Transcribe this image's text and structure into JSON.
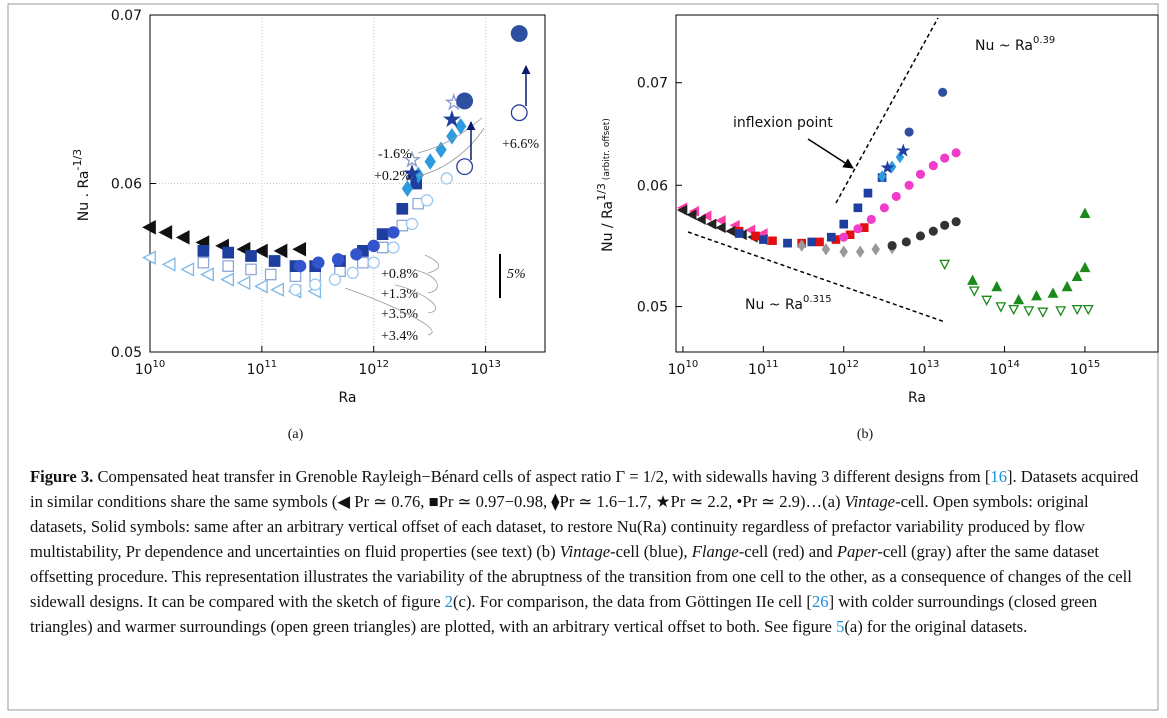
{
  "chart_data": [
    {
      "type": "scatter",
      "log_x": true,
      "log_y": false,
      "grid": true,
      "x_label": "Ra",
      "y_label": "Nu . Ra",
      "y_label_sup": "-1/3",
      "panel_label": "(a)",
      "xlim": [
        10000000000.0,
        34000000000000.0
      ],
      "ylim": [
        0.05,
        0.07
      ],
      "xticks": [
        {
          "value": 10000000000.0,
          "label": "10",
          "exponent": "10"
        },
        {
          "value": 100000000000.0,
          "label": "10",
          "exponent": "11"
        },
        {
          "value": 1000000000000.0,
          "label": "10",
          "exponent": "12"
        },
        {
          "value": 10000000000000.0,
          "label": "10",
          "exponent": "13"
        }
      ],
      "yticks": [
        0.05,
        0.06,
        0.07
      ],
      "annotations": [
        "-1.6%",
        "+0.2%",
        "+6.6%",
        "+0.8%",
        "+1.3%",
        "+3.5%",
        "+3.4%",
        "5%"
      ],
      "series": [
        {
          "marker": "triangle-left",
          "filled": false,
          "color": "#7ab8e8",
          "x": [
            10000000000.0,
            15000000000.0,
            22000000000.0,
            33000000000.0,
            50000000000.0,
            70000000000.0,
            100000000000.0,
            140000000000.0,
            200000000000.0,
            300000000000.0
          ],
          "values": [
            0.0556,
            0.0552,
            0.0549,
            0.0546,
            0.0543,
            0.0541,
            0.0539,
            0.0537,
            0.0536,
            0.0536
          ]
        },
        {
          "marker": "triangle-left",
          "filled": true,
          "color": "#111111",
          "x": [
            10000000000.0,
            14000000000.0,
            20000000000.0,
            30000000000.0,
            45000000000.0,
            70000000000.0,
            100000000000.0,
            150000000000.0,
            220000000000.0
          ],
          "values": [
            0.0574,
            0.0571,
            0.0568,
            0.0565,
            0.0563,
            0.0561,
            0.056,
            0.056,
            0.0561
          ]
        },
        {
          "marker": "square",
          "filled": false,
          "color": "#8fa8d8",
          "x": [
            30000000000.0,
            50000000000.0,
            80000000000.0,
            120000000000.0,
            200000000000.0,
            300000000000.0,
            500000000000.0,
            800000000000.0,
            1200000000000.0,
            1800000000000.0,
            2500000000000.0
          ],
          "values": [
            0.0553,
            0.0551,
            0.0549,
            0.0546,
            0.0545,
            0.0545,
            0.0548,
            0.0553,
            0.0562,
            0.0575,
            0.0588
          ]
        },
        {
          "marker": "square",
          "filled": true,
          "color": "#1f3f9f",
          "x": [
            30000000000.0,
            50000000000.0,
            80000000000.0,
            130000000000.0,
            200000000000.0,
            300000000000.0,
            500000000000.0,
            800000000000.0,
            1200000000000.0,
            1800000000000.0,
            2400000000000.0
          ],
          "values": [
            0.056,
            0.0559,
            0.0557,
            0.0554,
            0.0551,
            0.0551,
            0.0554,
            0.056,
            0.057,
            0.0585,
            0.06
          ]
        },
        {
          "marker": "circle",
          "filled": false,
          "color": "#9cc9ef",
          "x": [
            200000000000.0,
            300000000000.0,
            450000000000.0,
            650000000000.0,
            1000000000000.0,
            1500000000000.0,
            2200000000000.0,
            3000000000000.0,
            4500000000000.0
          ],
          "values": [
            0.0537,
            0.054,
            0.0543,
            0.0547,
            0.0553,
            0.0562,
            0.0576,
            0.059,
            0.0603
          ]
        },
        {
          "marker": "circle",
          "filled": true,
          "color": "#3355cc",
          "x": [
            220000000000.0,
            320000000000.0,
            480000000000.0,
            700000000000.0,
            1000000000000.0,
            1500000000000.0
          ],
          "values": [
            0.0551,
            0.0553,
            0.0555,
            0.0558,
            0.0563,
            0.0571
          ]
        },
        {
          "marker": "diamond",
          "filled": true,
          "color": "#2e9be0",
          "x": [
            2000000000000.0,
            2500000000000.0,
            3200000000000.0,
            4000000000000.0,
            5000000000000.0,
            6000000000000.0
          ],
          "values": [
            0.0597,
            0.0605,
            0.0613,
            0.062,
            0.0628,
            0.0634
          ]
        },
        {
          "marker": "star",
          "filled": false,
          "color": "#8899cc",
          "x": [
            2200000000000.0,
            5200000000000.0
          ],
          "values": [
            0.0614,
            0.0648
          ]
        },
        {
          "marker": "star",
          "filled": true,
          "color": "#1f3f9f",
          "x": [
            2200000000000.0,
            5000000000000.0
          ],
          "values": [
            0.0606,
            0.0638
          ]
        },
        {
          "marker": "big-circle",
          "filled": false,
          "color": "#2a3f99",
          "x": [
            6500000000000.0,
            20000000000000.0
          ],
          "values": [
            0.061,
            0.0642
          ]
        },
        {
          "marker": "big-circle",
          "filled": true,
          "color": "#2f4fa0",
          "x": [
            6500000000000.0,
            20000000000000.0
          ],
          "values": [
            0.0649,
            0.0689
          ]
        }
      ]
    },
    {
      "type": "scatter",
      "log_x": true,
      "log_y": true,
      "grid": false,
      "x_label": "Ra",
      "y_label": "Nu / Ra",
      "y_label_sup": "1/3",
      "y_label_note": "(arbitr. offset)",
      "panel_label": "(b)",
      "xlim": [
        8200000000.0,
        8100000000000000.0
      ],
      "ylim": [
        0.0467,
        0.0775
      ],
      "xticks": [
        {
          "value": 10000000000.0,
          "label": "10",
          "exponent": "10"
        },
        {
          "value": 100000000000.0,
          "label": "10",
          "exponent": "11"
        },
        {
          "value": 1000000000000.0,
          "label": "10",
          "exponent": "12"
        },
        {
          "value": 10000000000000.0,
          "label": "10",
          "exponent": "13"
        },
        {
          "value": 100000000000000.0,
          "label": "10",
          "exponent": "14"
        },
        {
          "value": 1000000000000000.0,
          "label": "10",
          "exponent": "15"
        }
      ],
      "yticks": [
        0.05,
        0.06,
        0.07
      ],
      "law_high": {
        "text": "Nu ~ Ra",
        "exponent": "0.39"
      },
      "law_low": {
        "text": "Nu ~ Ra",
        "exponent": "0.315"
      },
      "inflexion_label": "inflexion point",
      "series": [
        {
          "marker": "triangle-left",
          "filled": true,
          "color": "#ff3fa8",
          "x": [
            10000000000.0,
            14000000000.0,
            20000000000.0,
            30000000000.0,
            45000000000.0,
            70000000000.0,
            100000000000.0
          ],
          "values": [
            0.058,
            0.0577,
            0.0573,
            0.0569,
            0.0565,
            0.0561,
            0.0558
          ]
        },
        {
          "marker": "triangle-left",
          "filled": true,
          "color": "#222222",
          "x": [
            10000000000.0,
            13000000000.0,
            17000000000.0,
            23000000000.0,
            30000000000.0,
            40000000000.0,
            55000000000.0,
            75000000000.0,
            100000000000.0
          ],
          "values": [
            0.0578,
            0.0574,
            0.057,
            0.0566,
            0.0563,
            0.056,
            0.0557,
            0.0555,
            0.0553
          ]
        },
        {
          "marker": "square",
          "filled": true,
          "color": "#e01010",
          "x": [
            50000000000.0,
            80000000000.0,
            130000000000.0,
            200000000000.0,
            300000000000.0,
            500000000000.0,
            800000000000.0,
            1200000000000.0,
            1800000000000.0
          ],
          "values": [
            0.056,
            0.0556,
            0.0552,
            0.055,
            0.055,
            0.0551,
            0.0553,
            0.0557,
            0.0563
          ]
        },
        {
          "marker": "square",
          "filled": true,
          "color": "#1f3f9f",
          "x": [
            50000000000.0,
            100000000000.0,
            200000000000.0,
            400000000000.0,
            700000000000.0,
            1000000000000.0,
            1500000000000.0,
            2000000000000.0,
            3000000000000.0
          ],
          "values": [
            0.0558,
            0.0553,
            0.055,
            0.0551,
            0.0555,
            0.0566,
            0.058,
            0.0593,
            0.0607
          ]
        },
        {
          "marker": "diamond",
          "filled": true,
          "color": "#999999",
          "x": [
            300000000000.0,
            600000000000.0,
            1000000000000.0,
            1600000000000.0,
            2500000000000.0,
            4000000000000.0
          ],
          "values": [
            0.0548,
            0.0545,
            0.0543,
            0.0543,
            0.0545,
            0.0546
          ]
        },
        {
          "marker": "circle",
          "filled": true,
          "color": "#f03cc8",
          "x": [
            1000000000000.0,
            1500000000000.0,
            2200000000000.0,
            3200000000000.0,
            4500000000000.0,
            6500000000000.0,
            9000000000000.0,
            13000000000000.0,
            18000000000000.0,
            25000000000000.0
          ],
          "values": [
            0.0555,
            0.0562,
            0.057,
            0.058,
            0.059,
            0.06,
            0.061,
            0.0618,
            0.0625,
            0.063
          ]
        },
        {
          "marker": "circle",
          "filled": true,
          "color": "#333333",
          "x": [
            4000000000000.0,
            6000000000000.0,
            9000000000000.0,
            13000000000000.0,
            18000000000000.0,
            25000000000000.0
          ],
          "values": [
            0.0548,
            0.0551,
            0.0556,
            0.056,
            0.0565,
            0.0568
          ]
        },
        {
          "marker": "diamond",
          "filled": true,
          "color": "#2e9be0",
          "x": [
            3000000000000.0,
            4000000000000.0,
            5000000000000.0
          ],
          "values": [
            0.0608,
            0.0617,
            0.0626
          ]
        },
        {
          "marker": "star",
          "filled": true,
          "color": "#1f3f9f",
          "x": [
            3500000000000.0,
            5500000000000.0
          ],
          "values": [
            0.0616,
            0.0632
          ]
        },
        {
          "marker": "circle",
          "filled": true,
          "color": "#2f4fa0",
          "x": [
            6500000000000.0,
            17000000000000.0
          ],
          "values": [
            0.065,
            0.069
          ]
        },
        {
          "marker": "triangle-up",
          "filled": true,
          "color": "#1a8a1a",
          "x": [
            40000000000000.0,
            80000000000000.0,
            150000000000000.0,
            250000000000000.0,
            400000000000000.0,
            600000000000000.0,
            800000000000000.0,
            1000000000000000.0,
            1000000000000000.0
          ],
          "values": [
            0.052,
            0.0515,
            0.0505,
            0.0508,
            0.051,
            0.0515,
            0.0523,
            0.053,
            0.0575
          ]
        },
        {
          "marker": "triangle-down",
          "filled": false,
          "color": "#1a8a1a",
          "x": [
            18000000000000.0,
            42000000000000.0,
            60000000000000.0,
            90000000000000.0,
            130000000000000.0,
            200000000000000.0,
            300000000000000.0,
            500000000000000.0,
            800000000000000.0,
            1100000000000000.0
          ],
          "values": [
            0.0533,
            0.0512,
            0.0505,
            0.05,
            0.0498,
            0.0497,
            0.0496,
            0.0497,
            0.0498,
            0.0498
          ]
        }
      ]
    }
  ],
  "caption": {
    "segments": [
      {
        "text": "Figure 3.",
        "style": "bold"
      },
      {
        "text": " Compensated heat transfer in Grenoble Rayleigh−Bénard cells of aspect ratio Γ = 1/2, with sidewalls having 3 different designs from ["
      },
      {
        "text": "16",
        "style": "link"
      },
      {
        "text": "]. Datasets acquired in similar conditions share the same symbols (◀ Pr ≃ 0.76, ■Pr ≃ 0.97−0.98, ⧫Pr ≃ 1.6−1.7, ★Pr ≃ 2.2, •Pr ≃ 2.9)…(a) "
      },
      {
        "text": "Vintage",
        "style": "italic"
      },
      {
        "text": "-cell. Open symbols: original datasets, Solid symbols: same after an arbitrary vertical offset of each dataset, to restore Nu(Ra) continuity regardless of prefactor variability produced by flow multistability, Pr dependence and uncertainties on fluid properties (see text) (b) "
      },
      {
        "text": "Vintage",
        "style": "italic"
      },
      {
        "text": "-cell (blue), "
      },
      {
        "text": "Flange",
        "style": "italic"
      },
      {
        "text": "-cell (red) and "
      },
      {
        "text": "Paper",
        "style": "italic"
      },
      {
        "text": "-cell (gray) after the same dataset offsetting procedure. This representation illustrates the variability of the abruptness of the transition from one cell to the other, as a consequence of changes of the cell sidewall designs. It can be compared with the sketch of figure "
      },
      {
        "text": "2",
        "style": "link"
      },
      {
        "text": "(c). For comparison, the data from Göttingen IIe cell ["
      },
      {
        "text": "26",
        "style": "link"
      },
      {
        "text": "] with colder surroundings (closed green triangles) and warmer surroundings (open green triangles) are plotted, with an arbitrary vertical offset to both. See figure "
      },
      {
        "text": "5",
        "style": "link"
      },
      {
        "text": "(a) for the original datasets."
      }
    ]
  }
}
